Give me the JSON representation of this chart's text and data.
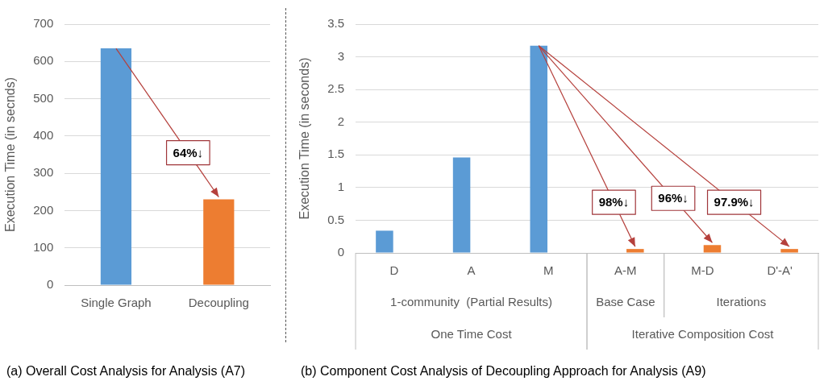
{
  "chart_data": [
    {
      "type": "bar",
      "title": "(a) Overall Cost Analysis for Analysis (A7)",
      "ylabel": "Execution Time (in secnds)",
      "categories": [
        "Single Graph",
        "Decoupling"
      ],
      "values": [
        635,
        230
      ],
      "colors": [
        "#5b9bd5",
        "#ed7d31"
      ],
      "ylim": [
        0,
        700
      ],
      "yticks": [
        0,
        100,
        200,
        300,
        400,
        500,
        600,
        700
      ],
      "grid": "y",
      "annotations": [
        "64%↓"
      ]
    },
    {
      "type": "bar",
      "title": "(b) Component Cost Analysis of Decoupling Approach for Analysis (A9)",
      "ylabel": "Execution Time (in seconds)",
      "categories": [
        "D",
        "A",
        "M",
        "A-M",
        "M-D",
        "D'-A'"
      ],
      "series": [
        {
          "color": "#5b9bd5",
          "values": [
            0.34,
            1.46,
            3.17,
            null,
            null,
            null
          ]
        },
        {
          "color": "#ed7d31",
          "values": [
            null,
            null,
            null,
            0.06,
            0.12,
            0.06
          ]
        }
      ],
      "ylim": [
        0,
        3.5
      ],
      "yticks": [
        0,
        0.5,
        1,
        1.5,
        2,
        2.5,
        3,
        3.5
      ],
      "grid": "y",
      "annotations": [
        "98%↓",
        "96%↓",
        "97.9%↓",
        "1-community  (Partial Results)",
        "Base Case",
        "Iterations",
        "One Time Cost",
        "Iterative Composition Cost"
      ]
    }
  ]
}
